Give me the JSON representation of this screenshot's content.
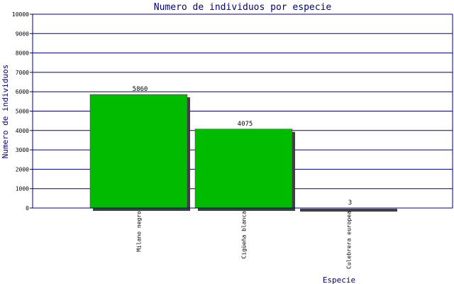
{
  "chart_data": {
    "type": "bar",
    "title": "Numero de individuos por especie",
    "xlabel": "Especie",
    "ylabel": "Numero de individuos",
    "categories": [
      "Milano negro",
      "Cigüeña blanca",
      "Culebrera europea"
    ],
    "values": [
      5860,
      4075,
      3
    ],
    "data_labels": [
      "5860",
      "4075",
      "3"
    ],
    "ylim": [
      0,
      10000
    ],
    "y_ticks": [
      0,
      1000,
      2000,
      3000,
      4000,
      5000,
      6000,
      7000,
      8000,
      9000,
      10000
    ],
    "y_tick_labels": [
      "0",
      "1000",
      "2000",
      "3000",
      "4000",
      "5000",
      "6000",
      "7000",
      "8000",
      "9000",
      "10000"
    ],
    "grid": true,
    "legend": "none",
    "colors": {
      "bar": "#00bb00",
      "bar_shadow": "#404040",
      "axis": "#000080",
      "grid": "#000080",
      "title": "#000080",
      "tick_label": "#000000",
      "value_label": "#000000"
    }
  }
}
